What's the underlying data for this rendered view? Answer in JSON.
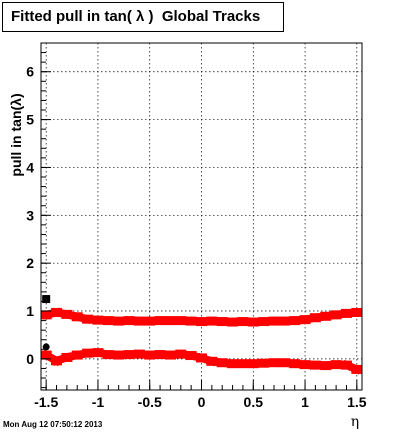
{
  "title": "Fitted pull in tan( λ )  Global Tracks",
  "timestamp": "Mon Aug 12 07:50:12 2013",
  "chart_data": {
    "type": "scatter",
    "xlabel": "η",
    "ylabel": "pull in tan(λ)",
    "xlim": [
      -1.55,
      1.55
    ],
    "ylim": [
      -0.65,
      6.6
    ],
    "xticks": [
      {
        "v": -1.5,
        "label": "-1.5"
      },
      {
        "v": -1.0,
        "label": "-1"
      },
      {
        "v": -0.5,
        "label": "-0.5"
      },
      {
        "v": 0.0,
        "label": "0"
      },
      {
        "v": 0.5,
        "label": "0.5"
      },
      {
        "v": 1.0,
        "label": "1"
      },
      {
        "v": 1.5,
        "label": "1.5"
      }
    ],
    "yticks": [
      {
        "v": 0,
        "label": "0"
      },
      {
        "v": 1,
        "label": "1"
      },
      {
        "v": 2,
        "label": "2"
      },
      {
        "v": 3,
        "label": "3"
      },
      {
        "v": 4,
        "label": "4"
      },
      {
        "v": 5,
        "label": "5"
      },
      {
        "v": 6,
        "label": "6"
      }
    ],
    "grid": true,
    "series": [
      {
        "color": "#ff0000",
        "marker": "square",
        "x": [
          -1.5,
          -1.4,
          -1.3,
          -1.2,
          -1.1,
          -1.0,
          -0.9,
          -0.8,
          -0.7,
          -0.6,
          -0.5,
          -0.4,
          -0.3,
          -0.2,
          -0.1,
          0.0,
          0.1,
          0.2,
          0.3,
          0.4,
          0.5,
          0.6,
          0.7,
          0.8,
          0.9,
          1.0,
          1.1,
          1.2,
          1.3,
          1.4,
          1.5
        ],
        "y": [
          0.92,
          0.97,
          0.93,
          0.88,
          0.83,
          0.81,
          0.8,
          0.79,
          0.8,
          0.79,
          0.79,
          0.8,
          0.8,
          0.8,
          0.79,
          0.78,
          0.79,
          0.78,
          0.77,
          0.78,
          0.77,
          0.78,
          0.79,
          0.79,
          0.8,
          0.82,
          0.86,
          0.89,
          0.92,
          0.95,
          0.97
        ]
      },
      {
        "color": "#ff0000",
        "marker": "square",
        "x": [
          -1.5,
          -1.4,
          -1.3,
          -1.2,
          -1.1,
          -1.0,
          -0.9,
          -0.8,
          -0.7,
          -0.6,
          -0.5,
          -0.4,
          -0.3,
          -0.2,
          -0.1,
          0.0,
          0.1,
          0.2,
          0.3,
          0.4,
          0.5,
          0.6,
          0.7,
          0.8,
          0.9,
          1.0,
          1.1,
          1.2,
          1.3,
          1.4,
          1.5
        ],
        "y": [
          0.08,
          -0.04,
          0.03,
          0.08,
          0.12,
          0.13,
          0.09,
          0.08,
          0.09,
          0.1,
          0.08,
          0.09,
          0.08,
          0.1,
          0.07,
          0.02,
          -0.05,
          -0.08,
          -0.1,
          -0.1,
          -0.1,
          -0.09,
          -0.08,
          -0.08,
          -0.1,
          -0.12,
          -0.13,
          -0.14,
          -0.12,
          -0.13,
          -0.22
        ]
      },
      {
        "color": "#000000",
        "marker": "square",
        "x": [
          -1.5
        ],
        "y": [
          1.25
        ]
      },
      {
        "color": "#000000",
        "marker": "circle",
        "x": [
          -1.5
        ],
        "y": [
          0.25
        ]
      }
    ]
  }
}
